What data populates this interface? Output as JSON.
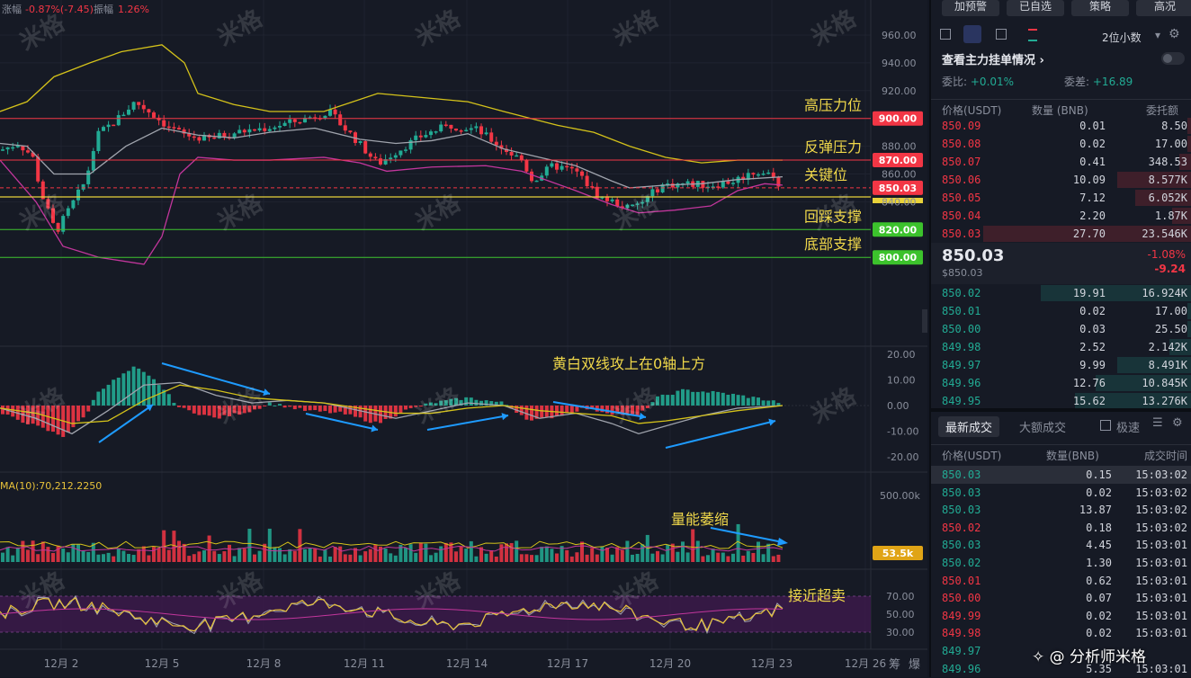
{
  "header": {
    "change_label": "涨幅",
    "change_value": "-0.87%(-7.45)",
    "amp_label": "振幅",
    "amp_value": "1.26%"
  },
  "watermark": "米格",
  "price_axis": [
    "960.00",
    "940.00",
    "920.00",
    "880.00",
    "860.00",
    "840.00"
  ],
  "levels": [
    {
      "price": "900.00",
      "label": "高压力位",
      "color": "#f23645"
    },
    {
      "price": "870.00",
      "label": "反弹压力",
      "color": "#f23645"
    },
    {
      "price": "850.03",
      "label": "关键位",
      "color": "#f23645"
    },
    {
      "price": "820.00",
      "label": "回踩支撑",
      "color": "#3cc22c"
    },
    {
      "price": "800.00",
      "label": "底部支撑",
      "color": "#3cc22c"
    }
  ],
  "macd": {
    "axis": [
      "20.00",
      "10.00",
      "0.00",
      "-10.00",
      "-20.00"
    ],
    "annotation": "黄白双线攻上在0轴上方"
  },
  "volume": {
    "ma_label": "MA(10):70,212.2250",
    "axis_top": "500.00k",
    "current": "53.5k",
    "annotation": "量能萎缩"
  },
  "rsi": {
    "axis": [
      "70.00",
      "50.00",
      "30.00"
    ],
    "annotation": "接近超卖"
  },
  "dates": [
    "12月 2",
    "12月 5",
    "12月 8",
    "12月 11",
    "12月 14",
    "12月 17",
    "12月 20",
    "12月 23",
    "12月 26"
  ],
  "corner_chars": [
    "筹",
    "爆"
  ],
  "panel": {
    "buttons": [
      "加预警",
      "已自选",
      "策略",
      "高况"
    ],
    "decimals": "2位小数",
    "depth_link": "查看主力挂单情况",
    "ratio_label": "委比:",
    "ratio_value": "+0.01%",
    "diff_label": "委差:",
    "diff_value": "+16.89",
    "ob_headers": [
      "价格(USDT)",
      "数量 (BNB)",
      "委托额"
    ],
    "asks": [
      {
        "price": "850.09",
        "qty": "0.01",
        "amt": "8.50",
        "depth": 0.02
      },
      {
        "price": "850.08",
        "qty": "0.02",
        "amt": "17.00",
        "depth": 0.02
      },
      {
        "price": "850.07",
        "qty": "0.41",
        "amt": "348.53",
        "depth": 0.05
      },
      {
        "price": "850.06",
        "qty": "10.09",
        "amt": "8.577K",
        "depth": 0.29
      },
      {
        "price": "850.05",
        "qty": "7.12",
        "amt": "6.052K",
        "depth": 0.22
      },
      {
        "price": "850.04",
        "qty": "2.20",
        "amt": "1.87K",
        "depth": 0.08
      },
      {
        "price": "850.03",
        "qty": "27.70",
        "amt": "23.546K",
        "depth": 0.8
      }
    ],
    "last_price": "850.03",
    "last_price_sub": "$850.03",
    "last_change_pct": "-1.08%",
    "last_change": "-9.24",
    "bids": [
      {
        "price": "850.02",
        "qty": "19.91",
        "amt": "16.924K",
        "depth": 0.58
      },
      {
        "price": "850.01",
        "qty": "0.02",
        "amt": "17.00",
        "depth": 0.02
      },
      {
        "price": "850.00",
        "qty": "0.03",
        "amt": "25.50",
        "depth": 0.02
      },
      {
        "price": "849.98",
        "qty": "2.52",
        "amt": "2.142K",
        "depth": 0.09
      },
      {
        "price": "849.97",
        "qty": "9.99",
        "amt": "8.491K",
        "depth": 0.29
      },
      {
        "price": "849.96",
        "qty": "12.76",
        "amt": "10.845K",
        "depth": 0.37
      },
      {
        "price": "849.95",
        "qty": "15.62",
        "amt": "13.276K",
        "depth": 0.45
      }
    ],
    "trade_tabs": [
      "最新成交",
      "大额成交"
    ],
    "extreme_label": "极速",
    "trade_headers": [
      "价格(USDT)",
      "数量(BNB)",
      "成交时间"
    ],
    "trades": [
      {
        "price": "850.03",
        "qty": "0.15",
        "time": "15:03:02",
        "side": "buy"
      },
      {
        "price": "850.03",
        "qty": "0.02",
        "time": "15:03:02",
        "side": "buy"
      },
      {
        "price": "850.03",
        "qty": "13.87",
        "time": "15:03:02",
        "side": "buy"
      },
      {
        "price": "850.02",
        "qty": "0.18",
        "time": "15:03:02",
        "side": "sell"
      },
      {
        "price": "850.03",
        "qty": "4.45",
        "time": "15:03:01",
        "side": "buy"
      },
      {
        "price": "850.02",
        "qty": "1.30",
        "time": "15:03:01",
        "side": "buy"
      },
      {
        "price": "850.01",
        "qty": "0.62",
        "time": "15:03:01",
        "side": "sell"
      },
      {
        "price": "850.00",
        "qty": "0.07",
        "time": "15:03:01",
        "side": "sell"
      },
      {
        "price": "849.99",
        "qty": "0.02",
        "time": "15:03:01",
        "side": "sell"
      },
      {
        "price": "849.98",
        "qty": "0.02",
        "time": "15:03:01",
        "side": "sell"
      },
      {
        "price": "849.97",
        "qty": "",
        "time": "",
        "side": "buy"
      },
      {
        "price": "849.96",
        "qty": "5.35",
        "time": "15:03:01",
        "side": "buy"
      }
    ],
    "credit": "@ 分析师米格"
  }
}
